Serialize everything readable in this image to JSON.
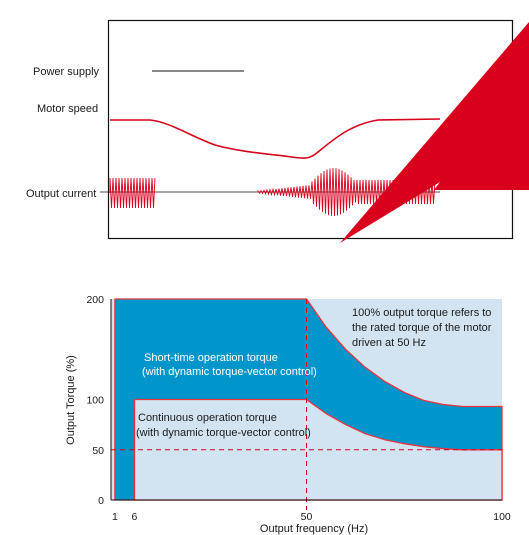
{
  "waveform_panel": {
    "labels": {
      "power_supply": "Power supply",
      "motor_speed": "Motor speed",
      "output_current": "Output current"
    },
    "signal_color": "#d8001c"
  },
  "chart_data": {
    "type": "area",
    "xlabel": "Output frequency (Hz)",
    "ylabel": "Output Torque (%)",
    "xlim": [
      0,
      100
    ],
    "ylim": [
      0,
      200
    ],
    "x_ticks": [
      "1",
      "6",
      "50",
      "100"
    ],
    "y_ticks": [
      "0",
      "50",
      "100",
      "200"
    ],
    "grid": false,
    "series": [
      {
        "name": "Short-time operation torque (with dynamic torque-vector control)",
        "x": [
          1,
          1,
          50,
          55,
          60,
          65,
          70,
          75,
          80,
          85,
          90,
          100
        ],
        "values": [
          0,
          200,
          200,
          172,
          150,
          132,
          118,
          107,
          99,
          95,
          93,
          93
        ]
      },
      {
        "name": "Continuous operation torque (with dynamic torque-vector control)",
        "x": [
          6,
          6,
          50,
          55,
          60,
          65,
          70,
          75,
          80,
          85,
          90,
          100
        ],
        "values": [
          0,
          100,
          100,
          86,
          75,
          66,
          60,
          56,
          53,
          51,
          50,
          50
        ]
      }
    ],
    "reference_lines": [
      {
        "orientation": "horizontal",
        "value": 50,
        "style": "dashed"
      },
      {
        "orientation": "vertical",
        "value": 50,
        "style": "dashed"
      }
    ],
    "annotations": {
      "short_time_line1": "Short-time operation torque",
      "short_time_line2": "(with dynamic torque-vector control)",
      "continuous_line1": "Continuous operation torque",
      "continuous_line2": "(with dynamic torque-vector control)",
      "note_line1": "100% output torque refers to",
      "note_line2": "the rated torque of the motor",
      "note_line3": "driven at 50 Hz"
    },
    "colors": {
      "short_time_fill": "#0096cc",
      "continuous_fill": "#d2e4f2",
      "plot_background": "#d2e4f2",
      "outline": "#e8323c",
      "dashed": "#d8001c"
    }
  }
}
